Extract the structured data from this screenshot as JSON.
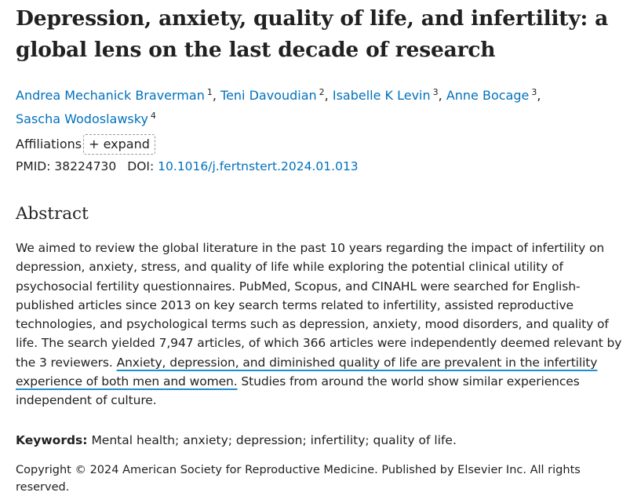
{
  "article": {
    "title": "Depression, anxiety, quality of life, and infertility: a global lens on the last decade of research",
    "authors": [
      {
        "name": "Andrea Mechanick Braverman",
        "aff": "1"
      },
      {
        "name": "Teni Davoudian",
        "aff": "2"
      },
      {
        "name": "Isabelle K Levin",
        "aff": "3"
      },
      {
        "name": "Anne Bocage",
        "aff": "3"
      },
      {
        "name": "Sascha Wodoslawsky",
        "aff": "4"
      }
    ],
    "author_separator": ",",
    "affiliations_label": "Affiliations",
    "expand_label": "+ expand",
    "pmid_label": "PMID:",
    "pmid": "38224730",
    "doi_label": "DOI:",
    "doi": "10.1016/j.fertnstert.2024.01.013"
  },
  "abstract": {
    "heading": "Abstract",
    "text_before": "We aimed to review the global literature in the past 10 years regarding the impact of infertility on depression, anxiety, stress, and quality of life while exploring the potential clinical utility of psychosocial fertility questionnaires. PubMed, Scopus, and CINAHL were searched for English-published articles since 2013 on key search terms related to infertility, assisted reproductive technologies, and psychological terms such as depression, anxiety, mood disorders, and quality of life. The search yielded 7,947 articles, of which 366 articles were independently deemed relevant by the 3 reviewers.",
    "text_highlighted": "Anxiety, depression, and diminished quality of life are prevalent in the infertility experience of both men and women.",
    "text_after": "Studies from around the world show similar experiences independent of culture.",
    "highlight_color": "#1b8fd0"
  },
  "keywords": {
    "label": "Keywords:",
    "value": "Mental health; anxiety; depression; infertility; quality of life."
  },
  "copyright": "Copyright © 2024 American Society for Reproductive Medicine. Published by Elsevier Inc. All rights reserved.",
  "colors": {
    "link": "#0071bc",
    "text": "#212121"
  }
}
